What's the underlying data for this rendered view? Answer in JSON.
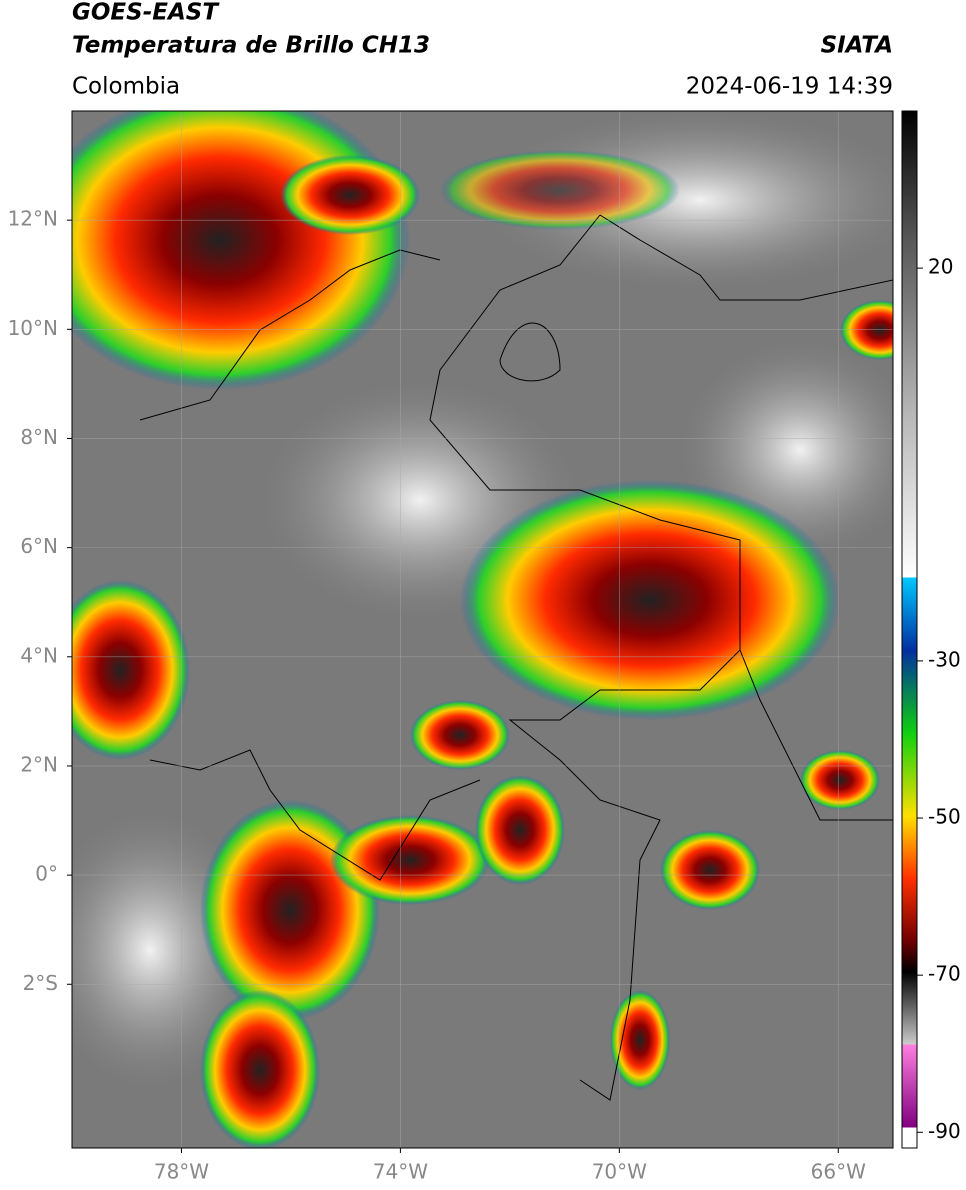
{
  "header": {
    "satellite": "GOES-EAST",
    "product": "Temperatura de Brillo CH13",
    "region": "Colombia",
    "source": "SIATA",
    "datetime": "2024-06-19 14:39"
  },
  "map": {
    "xlim": [
      -80,
      -65
    ],
    "ylim": [
      -5,
      14
    ],
    "xticks": [
      {
        "value": -78,
        "label": "78°W"
      },
      {
        "value": -74,
        "label": "74°W"
      },
      {
        "value": -70,
        "label": "70°W"
      },
      {
        "value": -66,
        "label": "66°W"
      }
    ],
    "yticks": [
      {
        "value": 12,
        "label": "12°N"
      },
      {
        "value": 10,
        "label": "10°N"
      },
      {
        "value": 8,
        "label": "8°N"
      },
      {
        "value": 6,
        "label": "6°N"
      },
      {
        "value": 4,
        "label": "4°N"
      },
      {
        "value": 2,
        "label": "2°N"
      },
      {
        "value": 0,
        "label": "0°"
      },
      {
        "value": -2,
        "label": "2°S"
      }
    ],
    "grid": true
  },
  "colorbar": {
    "lim": [
      -92,
      40
    ],
    "ticks": [
      20,
      -30,
      -50,
      -70,
      -90
    ]
  }
}
